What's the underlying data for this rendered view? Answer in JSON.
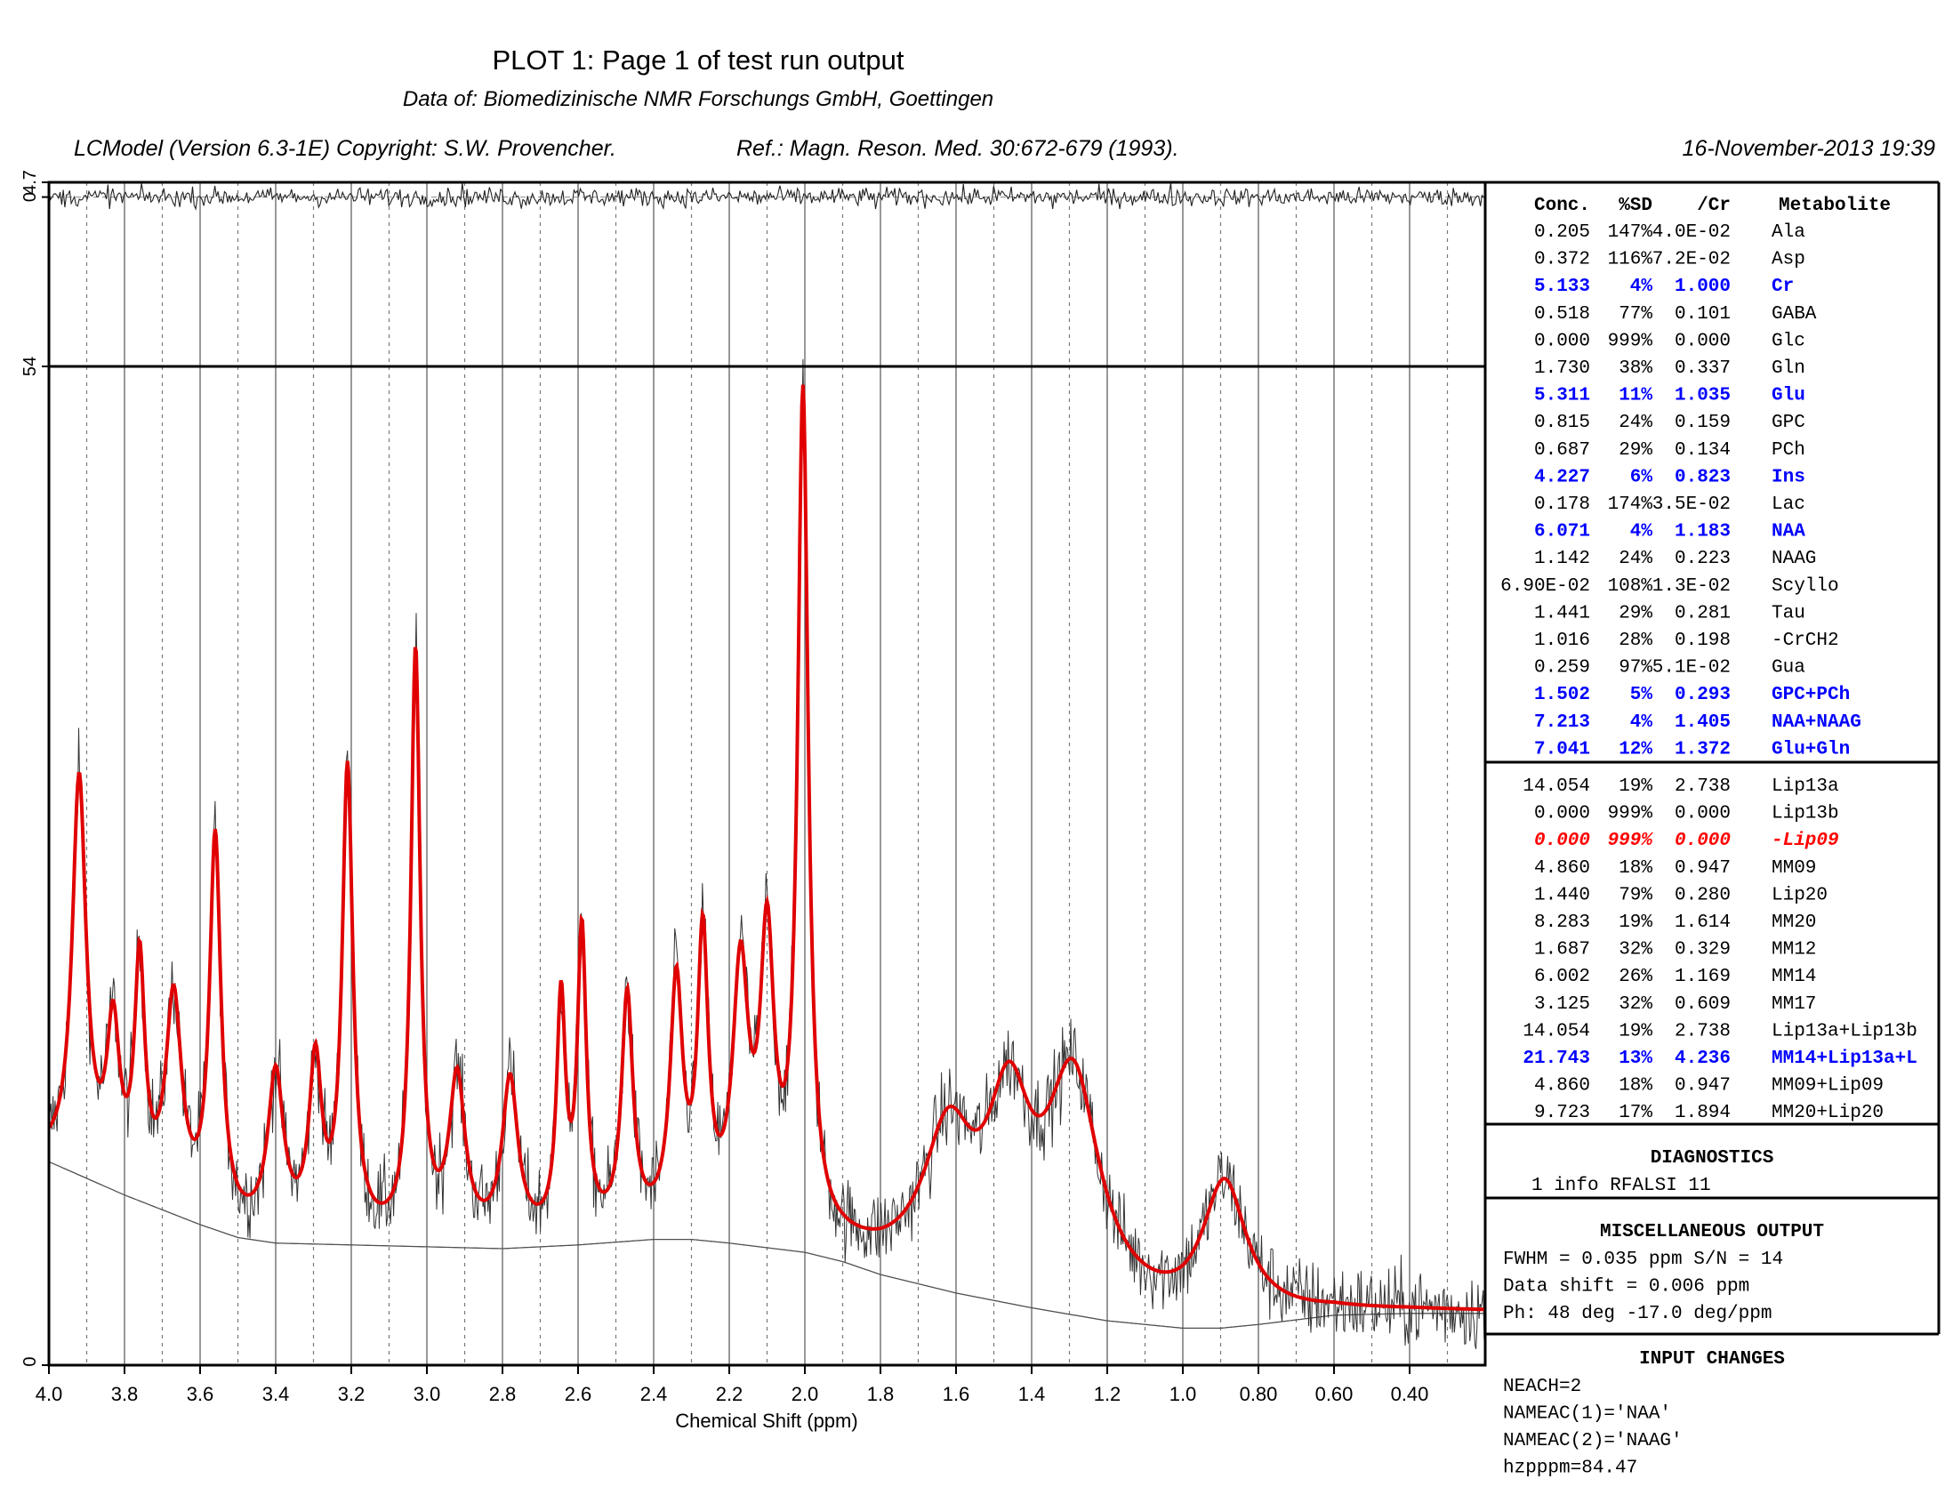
{
  "header": {
    "title": "PLOT 1:  Page 1 of test run output",
    "subtitle": "Data of: Biomedizinische NMR Forschungs GmbH, Goettingen",
    "version": "LCModel (Version 6.3-1E) Copyright: S.W. Provencher.",
    "reference": "Ref.: Magn. Reson. Med. 30:672-679 (1993).",
    "date": "16-November-2013  19:39"
  },
  "chart_data": {
    "type": "line",
    "xlabel": "Chemical Shift (ppm)",
    "xlim": [
      4.0,
      0.2
    ],
    "x_ticks": [
      "4.0",
      "3.8",
      "3.6",
      "3.4",
      "3.2",
      "3.0",
      "2.8",
      "2.6",
      "2.4",
      "2.2",
      "2.0",
      "1.8",
      "1.6",
      "1.4",
      "1.2",
      "1.0",
      "0.80",
      "0.60",
      "0.40"
    ],
    "grid": true,
    "residual": {
      "ylim": [
        -54,
        4.7
      ],
      "tick_labels": [
        "4.7",
        "0",
        "54"
      ]
    },
    "spectrum": {
      "ylim": [
        0,
        54
      ],
      "tick_labels": [
        "0"
      ],
      "series": [
        {
          "style": "fit",
          "color": "#e00000",
          "baseline": [
            [
              4.0,
              0.0
            ],
            [
              3.5,
              0.0
            ],
            [
              3.0,
              0.0
            ],
            [
              2.5,
              0.0
            ],
            [
              2.0,
              0.0
            ],
            [
              1.5,
              0.0
            ],
            [
              1.0,
              0.0
            ],
            [
              0.5,
              0.0
            ],
            [
              0.2,
              0.0
            ]
          ],
          "peaks": [
            {
              "center": 3.92,
              "height": 21.0,
              "width": 0.022
            },
            {
              "center": 3.83,
              "height": 8.0,
              "width": 0.02
            },
            {
              "center": 3.76,
              "height": 12.0,
              "width": 0.016
            },
            {
              "center": 3.67,
              "height": 11.0,
              "width": 0.025
            },
            {
              "center": 3.56,
              "height": 20.5,
              "width": 0.018
            },
            {
              "center": 3.4,
              "height": 8.5,
              "width": 0.025
            },
            {
              "center": 3.295,
              "height": 9.0,
              "width": 0.02
            },
            {
              "center": 3.21,
              "height": 25.0,
              "width": 0.017
            },
            {
              "center": 3.03,
              "height": 31.5,
              "width": 0.015
            },
            {
              "center": 2.92,
              "height": 8.5,
              "width": 0.025
            },
            {
              "center": 2.78,
              "height": 8.5,
              "width": 0.025
            },
            {
              "center": 2.645,
              "height": 12.5,
              "width": 0.014
            },
            {
              "center": 2.59,
              "height": 16.0,
              "width": 0.014
            },
            {
              "center": 2.47,
              "height": 12.5,
              "width": 0.018
            },
            {
              "center": 2.34,
              "height": 12.8,
              "width": 0.02
            },
            {
              "center": 2.27,
              "height": 15.0,
              "width": 0.017
            },
            {
              "center": 2.17,
              "height": 13.5,
              "width": 0.025
            },
            {
              "center": 2.1,
              "height": 15.0,
              "width": 0.022
            },
            {
              "center": 2.005,
              "height": 45.0,
              "width": 0.017
            },
            {
              "center": 1.62,
              "height": 7.5,
              "width": 0.08
            },
            {
              "center": 1.46,
              "height": 9.0,
              "width": 0.07
            },
            {
              "center": 1.29,
              "height": 11.8,
              "width": 0.085
            },
            {
              "center": 0.89,
              "height": 7.3,
              "width": 0.07
            }
          ]
        },
        {
          "style": "baseline",
          "color": "#505050",
          "points": [
            [
              4.0,
              11.0
            ],
            [
              3.8,
              9.2
            ],
            [
              3.6,
              7.6
            ],
            [
              3.5,
              6.9
            ],
            [
              3.4,
              6.6
            ],
            [
              3.2,
              6.5
            ],
            [
              3.0,
              6.4
            ],
            [
              2.8,
              6.3
            ],
            [
              2.6,
              6.5
            ],
            [
              2.4,
              6.8
            ],
            [
              2.3,
              6.8
            ],
            [
              2.2,
              6.6
            ],
            [
              2.0,
              6.1
            ],
            [
              1.9,
              5.6
            ],
            [
              1.8,
              4.9
            ],
            [
              1.6,
              3.9
            ],
            [
              1.4,
              3.1
            ],
            [
              1.2,
              2.4
            ],
            [
              1.0,
              2.0
            ],
            [
              0.9,
              2.0
            ],
            [
              0.8,
              2.2
            ],
            [
              0.6,
              2.7
            ],
            [
              0.4,
              2.8
            ],
            [
              0.2,
              2.8
            ]
          ]
        }
      ]
    }
  },
  "table": {
    "columns": [
      "Conc.",
      "%SD",
      "/Cr",
      "Metabolite"
    ],
    "rows": [
      [
        "0.205",
        "147%",
        "4.0E-02",
        "Ala"
      ],
      [
        "0.372",
        "116%",
        "7.2E-02",
        "Asp"
      ],
      [
        "5.133",
        "4%",
        "1.000",
        "Cr"
      ],
      [
        "0.518",
        "77%",
        "0.101",
        "GABA"
      ],
      [
        "0.000",
        "999%",
        "0.000",
        "Glc"
      ],
      [
        "1.730",
        "38%",
        "0.337",
        "Gln"
      ],
      [
        "5.311",
        "11%",
        "1.035",
        "Glu"
      ],
      [
        "0.815",
        "24%",
        "0.159",
        "GPC"
      ],
      [
        "0.687",
        "29%",
        "0.134",
        "PCh"
      ],
      [
        "4.227",
        "6%",
        "0.823",
        "Ins"
      ],
      [
        "0.178",
        "174%",
        "3.5E-02",
        "Lac"
      ],
      [
        "6.071",
        "4%",
        "1.183",
        "NAA"
      ],
      [
        "1.142",
        "24%",
        "0.223",
        "NAAG"
      ],
      [
        "6.90E-02",
        "108%",
        "1.3E-02",
        "Scyllo"
      ],
      [
        "1.441",
        "29%",
        "0.281",
        "Tau"
      ],
      [
        "1.016",
        "28%",
        "0.198",
        "-CrCH2"
      ],
      [
        "0.259",
        "97%",
        "5.1E-02",
        "Gua"
      ],
      [
        "1.502",
        "5%",
        "0.293",
        "GPC+PCh"
      ],
      [
        "7.213",
        "4%",
        "1.405",
        "NAA+NAAG"
      ],
      [
        "7.041",
        "12%",
        "1.372",
        "Glu+Gln"
      ]
    ],
    "highlight_rows": [
      2,
      6,
      9,
      11,
      17,
      18,
      19
    ],
    "highlight_color": "#0000ff",
    "lipid_rows": [
      [
        "14.054",
        "19%",
        "2.738",
        "Lip13a"
      ],
      [
        "0.000",
        "999%",
        "0.000",
        "Lip13b"
      ],
      [
        "0.000",
        "999%",
        "0.000",
        "-Lip09"
      ],
      [
        "4.860",
        "18%",
        "0.947",
        "MM09"
      ],
      [
        "1.440",
        "79%",
        "0.280",
        "Lip20"
      ],
      [
        "8.283",
        "19%",
        "1.614",
        "MM20"
      ],
      [
        "1.687",
        "32%",
        "0.329",
        "MM12"
      ],
      [
        "6.002",
        "26%",
        "1.169",
        "MM14"
      ],
      [
        "3.125",
        "32%",
        "0.609",
        "MM17"
      ],
      [
        "14.054",
        "19%",
        "2.738",
        "Lip13a+Lip13b"
      ],
      [
        "21.743",
        "13%",
        "4.236",
        "MM14+Lip13a+L"
      ],
      [
        "4.860",
        "18%",
        "0.947",
        "MM09+Lip09"
      ],
      [
        "9.723",
        "17%",
        "1.894",
        "MM20+Lip20"
      ]
    ],
    "lipid_highlight": {
      "2": "#ff0000",
      "10": "#0000ff"
    }
  },
  "diagnostics": {
    "title": "DIAGNOSTICS",
    "lines": [
      "1 info      RFALSI 11"
    ]
  },
  "misc": {
    "title": "MISCELLANEOUS OUTPUT",
    "lines": [
      "FWHM = 0.035 ppm    S/N =  14",
      "Data shift = 0.006 ppm",
      "Ph:  48 deg      -17.0 deg/ppm"
    ]
  },
  "input_changes": {
    "title": "INPUT CHANGES",
    "lines": [
      "NEACH=2",
      "NAMEAC(1)='NAA'",
      "NAMEAC(2)='NAAG'",
      "hzpppm=84.47"
    ]
  }
}
